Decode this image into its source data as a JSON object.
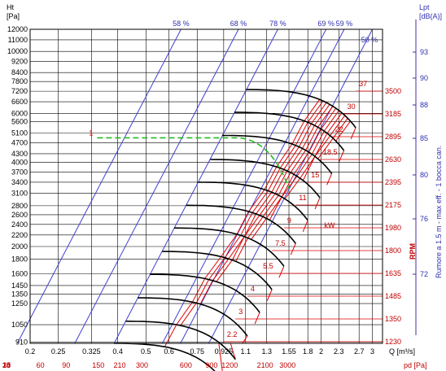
{
  "chart_data": {
    "type": "line",
    "title": "",
    "left_axis": {
      "unit_lines": [
        "Ht",
        "[Pa]"
      ],
      "log_scale": true,
      "ticks": [
        910,
        1050,
        1250,
        1350,
        1450,
        1600,
        1800,
        2000,
        2200,
        2400,
        2600,
        2800,
        3100,
        3400,
        3700,
        4000,
        4300,
        4700,
        5100,
        5600,
        6000,
        6600,
        7200,
        7800,
        8400,
        9200,
        10000,
        11000,
        12000
      ]
    },
    "bottom_axis": {
      "label": "Q [m³/s]",
      "log_scale": true,
      "ticks": [
        "0.2",
        "0.25",
        "0.325",
        "0.4",
        "0.5",
        "0.6",
        "0.75",
        "0.925",
        "1.1",
        "1.3",
        "1.55",
        "1.8",
        "2",
        "2.3",
        "2.7",
        "3"
      ],
      "tick_values": [
        0.2,
        0.25,
        0.325,
        0.4,
        0.5,
        0.6,
        0.75,
        0.925,
        1.1,
        1.3,
        1.55,
        1.8,
        2,
        2.3,
        2.7,
        3
      ]
    },
    "pd_axis": {
      "label": "pd [Pa]",
      "ticks": [
        "15",
        "18",
        "24",
        "30",
        "60",
        "90",
        "150",
        "210",
        "300",
        "600",
        "900",
        "1200",
        "2100",
        "3000"
      ],
      "flow_at_tick": [
        0.108,
        0.119,
        0.137,
        0.153,
        0.217,
        0.266,
        0.343,
        0.406,
        0.485,
        0.686,
        0.84,
        0.97,
        1.283,
        1.533
      ]
    },
    "rpm_axis": {
      "label": "RPM",
      "ticks": [
        1230,
        1350,
        1485,
        1635,
        1800,
        1980,
        2175,
        2395,
        2630,
        2895,
        3185,
        3500
      ]
    },
    "noise_axis": {
      "unit_lines": [
        "Lpt",
        "[dB(A)]"
      ],
      "label": "Rumore a 1.5 m - max eff. - 1 bocca can.",
      "ticks": [
        72,
        76,
        80,
        85,
        88,
        90,
        93
      ]
    },
    "efficiency_lines": [
      {
        "label": "58 %",
        "q_top": 0.66
      },
      {
        "label": "68 %",
        "q_top": 1.04
      },
      {
        "label": "78 %",
        "q_top": 1.42
      },
      {
        "label": "69 %",
        "q_top": 2.08
      },
      {
        "label": "59 %",
        "q_top": 2.4
      },
      {
        "label": "50 %",
        "q_top": 3.0
      }
    ],
    "rpm_curves": {
      "shutoff_q_factor": 0.58,
      "end_q_factor": 1.34,
      "pressure_ratio_at_end": 0.73,
      "points": [
        {
          "rpm": 1230,
          "p_shutoff": 900,
          "q_end": 0.925
        },
        {
          "rpm": 1350,
          "p_shutoff": 1080,
          "q_end": 1.015
        },
        {
          "rpm": 1485,
          "p_shutoff": 1310,
          "q_end": 1.115
        },
        {
          "rpm": 1635,
          "p_shutoff": 1590,
          "q_end": 1.23
        },
        {
          "rpm": 1800,
          "p_shutoff": 1920,
          "q_end": 1.355
        },
        {
          "rpm": 1980,
          "p_shutoff": 2330,
          "q_end": 1.49
        },
        {
          "rpm": 2175,
          "p_shutoff": 2810,
          "q_end": 1.635
        },
        {
          "rpm": 2395,
          "p_shutoff": 3400,
          "q_end": 1.8
        },
        {
          "rpm": 2630,
          "p_shutoff": 4100,
          "q_end": 1.98
        },
        {
          "rpm": 2895,
          "p_shutoff": 5000,
          "q_end": 2.175
        },
        {
          "rpm": 3185,
          "p_shutoff": 6050,
          "q_end": 2.395
        },
        {
          "rpm": 3500,
          "p_shutoff": 7300,
          "q_end": 2.63
        }
      ]
    },
    "motor_power_labels": [
      "2.2",
      "3",
      "4",
      "5.5",
      "7.5",
      "9",
      "11",
      "15",
      "18.5",
      "22",
      "30",
      "37"
    ],
    "motor_power_unit": "kW",
    "operating_point": {
      "label": "1",
      "pressure": 4900,
      "q_end": 1.55
    },
    "colors": {
      "rpm_curves": "#000000",
      "power_curves": "#dd0000",
      "efficiency_lines": "#4040d0",
      "operating_line": "#22bb22",
      "grid": "#000000"
    }
  }
}
